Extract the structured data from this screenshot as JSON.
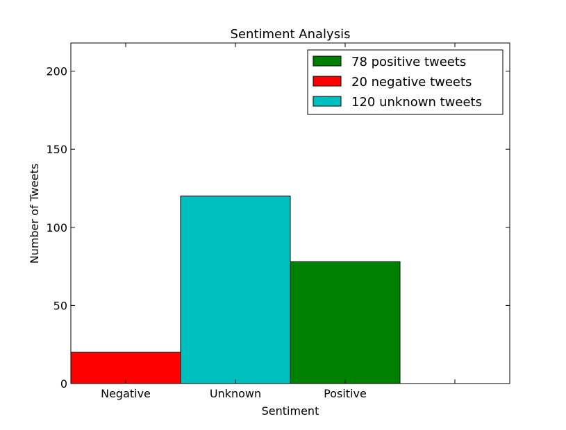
{
  "chart_data": {
    "type": "bar",
    "title": "Sentiment Analysis",
    "xlabel": "Sentiment",
    "ylabel": "Number of Tweets",
    "categories": [
      "Negative",
      "Unknown",
      "Positive"
    ],
    "values": [
      20,
      120,
      78
    ],
    "colors": [
      "#ff0000",
      "#00bfbf",
      "#008000"
    ],
    "ylim": [
      0,
      218
    ],
    "yticks": [
      0,
      50,
      100,
      150,
      200
    ],
    "grid": false,
    "legend_position": "top-right",
    "legend": [
      {
        "label": "78 positive tweets",
        "color": "#008000"
      },
      {
        "label": "20 negative tweets",
        "color": "#ff0000"
      },
      {
        "label": "120 unknown tweets",
        "color": "#00bfbf"
      }
    ]
  }
}
